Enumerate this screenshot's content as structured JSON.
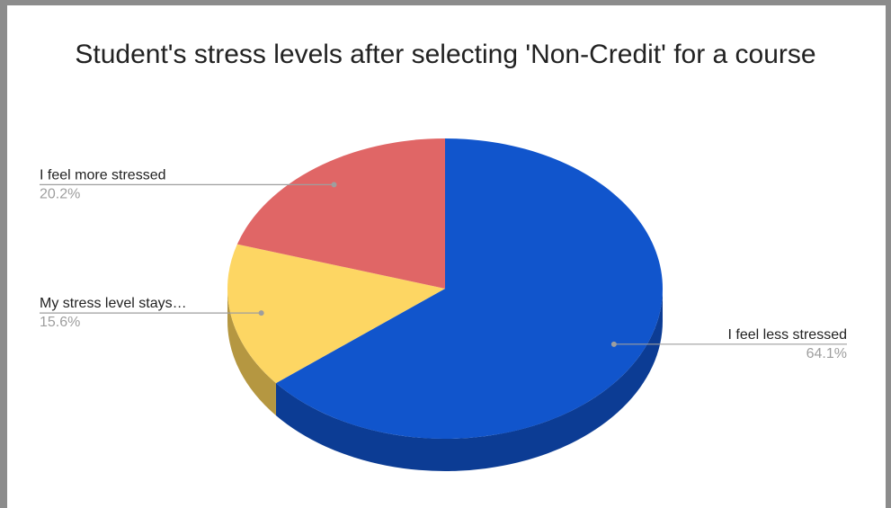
{
  "chart_data": {
    "type": "pie",
    "title": "Student's stress levels after selecting 'Non-Credit' for a course",
    "style": "3d",
    "slices": [
      {
        "label": "I feel less stressed",
        "value": 64.1,
        "value_label": "64.1%",
        "color": "#1155cc",
        "side_color": "#0c3c94"
      },
      {
        "label": "My stress level stays…",
        "value": 15.6,
        "value_label": "15.6%",
        "color": "#fdd663",
        "side_color": "#b59741"
      },
      {
        "label": "I feel more stressed",
        "value": 20.2,
        "value_label": "20.2%",
        "color": "#e06666",
        "side_color": "#a14848"
      }
    ],
    "legend": "none"
  }
}
